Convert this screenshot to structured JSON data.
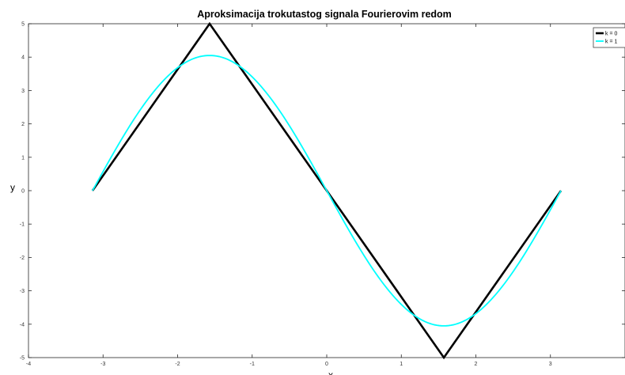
{
  "chart_data": {
    "type": "line",
    "title": "Aproksimacija trokutastog signala Fourierovim redom",
    "xlabel": "x",
    "ylabel": "y",
    "xlim": [
      -4,
      4
    ],
    "ylim": [
      -5,
      5
    ],
    "xticks": [
      -4,
      -3,
      -2,
      -1,
      0,
      1,
      2,
      3
    ],
    "yticks": [
      -5,
      -4,
      -3,
      -2,
      -1,
      0,
      1,
      2,
      3,
      4,
      5
    ],
    "grid": false,
    "legend_position": "top-right",
    "series": [
      {
        "name": "k = 0",
        "color": "#000000",
        "x": [
          -3.1416,
          -1.5708,
          1.5708,
          3.1416
        ],
        "y": [
          0,
          5,
          -5,
          0
        ]
      },
      {
        "name": "k = 1",
        "color": "#00ffff",
        "x": [
          -3.1416,
          -2.8274,
          -2.5133,
          -2.1991,
          -1.885,
          -1.5708,
          -1.2566,
          -0.9425,
          -0.6283,
          -0.3142,
          0,
          0.3142,
          0.6283,
          0.9425,
          1.2566,
          1.5708,
          1.885,
          2.1991,
          2.5133,
          2.8274,
          3.1416
        ],
        "y": [
          0,
          1.26,
          2.39,
          3.29,
          3.87,
          4.05,
          3.87,
          3.29,
          2.39,
          1.26,
          0,
          -1.26,
          -2.39,
          -3.29,
          -3.87,
          -4.05,
          -3.87,
          -3.29,
          -2.39,
          -1.26,
          0
        ]
      }
    ]
  }
}
